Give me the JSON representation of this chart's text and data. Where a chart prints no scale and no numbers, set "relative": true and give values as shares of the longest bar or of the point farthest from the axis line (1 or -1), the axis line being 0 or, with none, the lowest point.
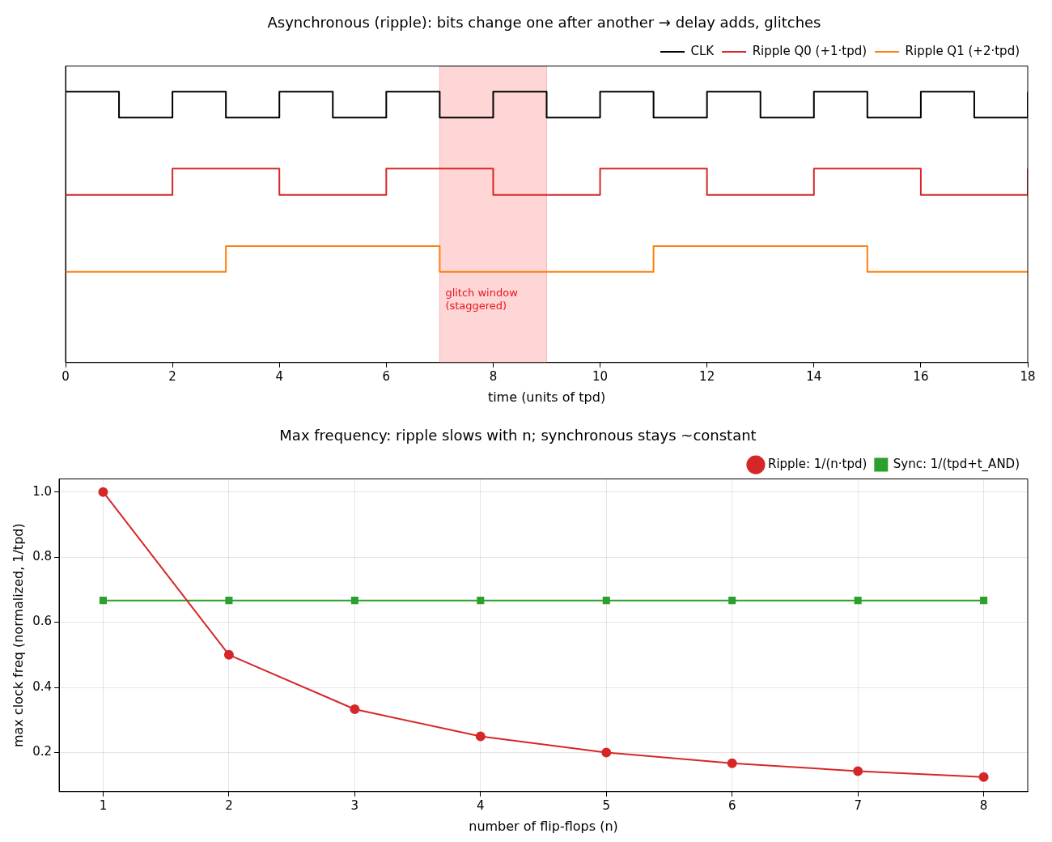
{
  "chart_data": [
    {
      "type": "step",
      "title": "Asynchronous (ripple): bits change one after another → delay adds, glitches",
      "xlabel": "time (units of tpd)",
      "relative": true,
      "xlim": [
        0,
        18
      ],
      "xticks": [
        0,
        2,
        4,
        6,
        8,
        10,
        12,
        14,
        16,
        18
      ],
      "tick_labels": "x",
      "grid": false,
      "legend": "top right",
      "series": [
        {
          "name": "CLK",
          "color": "#000000",
          "x": [
            0,
            1,
            2,
            3,
            4,
            5,
            6,
            7,
            8,
            9,
            10,
            11,
            12,
            13,
            14,
            15,
            16,
            17,
            18
          ],
          "values": [
            1,
            0.905,
            1,
            0.905,
            1,
            0.905,
            1,
            0.905,
            1,
            0.905,
            1,
            0.905,
            1,
            0.905,
            1,
            0.905,
            1,
            0.905,
            1
          ]
        },
        {
          "name": "Ripple Q0 (+1·tpd)",
          "color": "#d62728",
          "x": [
            0,
            2,
            4,
            6,
            8,
            10,
            12,
            14,
            16,
            18
          ],
          "values": [
            0.619,
            0.716,
            0.619,
            0.716,
            0.619,
            0.716,
            0.619,
            0.716,
            0.619,
            0.716
          ]
        },
        {
          "name": "Ripple Q1 (+2·tpd)",
          "color": "#ff7f0e",
          "x": [
            0,
            3,
            7,
            11,
            15,
            18
          ],
          "values": [
            0.335,
            0.43,
            0.335,
            0.43,
            0.335,
            0.335
          ]
        }
      ],
      "bands": [
        {
          "axis": "x",
          "from": 7,
          "to": 9,
          "label": "glitch window\n(staggered)",
          "color": "#ffd6d6"
        }
      ]
    },
    {
      "type": "line",
      "title": "Max frequency: ripple slows with n; synchronous stays ~constant",
      "xlabel": "number of flip-flops (n)",
      "ylabel": "max clock freq (normalized, 1/tpd)",
      "xlim": [
        0.65,
        8.35
      ],
      "xticks": [
        1,
        2,
        3,
        4,
        5,
        6,
        7,
        8
      ],
      "ylim": [
        0.08,
        1.04
      ],
      "yticks": [
        {
          "value": 0.2,
          "label": "0.2"
        },
        {
          "value": 0.4,
          "label": "0.4"
        },
        {
          "value": 0.6,
          "label": "0.6"
        },
        {
          "value": 0.8,
          "label": "0.8"
        },
        {
          "value": 1.0,
          "label": "1.0"
        }
      ],
      "grid": true,
      "legend": "top right",
      "x": [
        1,
        2,
        3,
        4,
        5,
        6,
        7,
        8
      ],
      "series": [
        {
          "name": "Ripple: 1/(n·tpd)",
          "color": "#d62728",
          "marker": "circle",
          "values": [
            1,
            0.5,
            0.333,
            0.25,
            0.2,
            0.167,
            0.143,
            0.125
          ]
        },
        {
          "name": "Sync: 1/(tpd+t_AND)",
          "color": "#2ca02c",
          "marker": "square",
          "values": [
            0.667,
            0.667,
            0.667,
            0.667,
            0.667,
            0.667,
            0.667,
            0.667
          ]
        }
      ]
    }
  ]
}
